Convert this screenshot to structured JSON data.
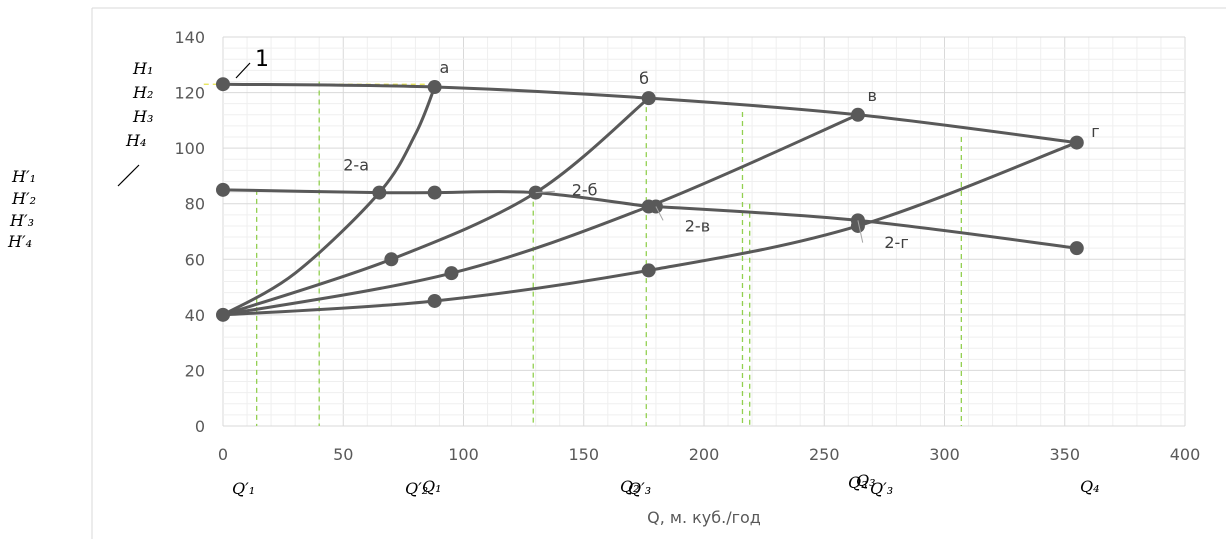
{
  "chart_data": {
    "type": "line",
    "xlabel": "Q, м. куб./год",
    "xlim": [
      0,
      400
    ],
    "ylim": [
      0,
      140
    ],
    "x_ticks": [
      0,
      50,
      100,
      150,
      200,
      250,
      300,
      350,
      400
    ],
    "y_ticks": [
      0,
      20,
      40,
      60,
      80,
      100,
      120,
      140
    ],
    "grid": true,
    "series": [
      {
        "points": [
          [
            0,
            123
          ],
          [
            88,
            122
          ],
          [
            177,
            118
          ],
          [
            264,
            112
          ],
          [
            355,
            102
          ]
        ],
        "color": "#595959"
      },
      {
        "points": [
          [
            0,
            85
          ],
          [
            65,
            84
          ],
          [
            88,
            84
          ],
          [
            130,
            84
          ],
          [
            177,
            79
          ],
          [
            180,
            79
          ],
          [
            264,
            74
          ],
          [
            355,
            64
          ]
        ],
        "color": "#595959"
      },
      {
        "points": [
          [
            0,
            40
          ],
          [
            30,
            55
          ],
          [
            65,
            84
          ],
          [
            80,
            105
          ],
          [
            88,
            122
          ]
        ],
        "color": "#595959"
      },
      {
        "points": [
          [
            0,
            40
          ],
          [
            70,
            60
          ],
          [
            130,
            84
          ],
          [
            177,
            118
          ]
        ],
        "color": "#595959"
      },
      {
        "points": [
          [
            0,
            40
          ],
          [
            95,
            55
          ],
          [
            177,
            79
          ],
          [
            264,
            112
          ]
        ],
        "color": "#595959"
      },
      {
        "points": [
          [
            0,
            40
          ],
          [
            88,
            45
          ],
          [
            177,
            56
          ],
          [
            264,
            72
          ],
          [
            355,
            102
          ]
        ],
        "color": "#595959"
      }
    ],
    "markers": [
      [
        0,
        123
      ],
      [
        88,
        122
      ],
      [
        177,
        118
      ],
      [
        264,
        112
      ],
      [
        355,
        102
      ],
      [
        0,
        85
      ],
      [
        65,
        84
      ],
      [
        88,
        84
      ],
      [
        130,
        84
      ],
      [
        177,
        79
      ],
      [
        180,
        79
      ],
      [
        264,
        74
      ],
      [
        355,
        64
      ],
      [
        0,
        40
      ],
      [
        70,
        60
      ],
      [
        95,
        55
      ],
      [
        88,
        45
      ],
      [
        177,
        56
      ],
      [
        264,
        72
      ]
    ],
    "dashed_vertical_x": [
      14,
      40,
      129,
      176,
      216,
      219,
      307
    ],
    "dashed_horizontal": {
      "y": 123,
      "x_from": -8,
      "x_to": 88
    },
    "point_labels": [
      {
        "text": "а",
        "x": 90,
        "y": 127
      },
      {
        "text": "б",
        "x": 173,
        "y": 123
      },
      {
        "text": "в",
        "x": 268,
        "y": 117
      },
      {
        "text": "г",
        "x": 361,
        "y": 104
      },
      {
        "text": "2-а",
        "x": 50,
        "y": 92
      },
      {
        "text": "2-б",
        "x": 145,
        "y": 83
      },
      {
        "text": "2-в",
        "x": 192,
        "y": 70
      },
      {
        "text": "2-г",
        "x": 275,
        "y": 64
      }
    ],
    "h_labels": [
      "H₁",
      "H₂",
      "H₃",
      "H₄"
    ],
    "h_prime_labels": [
      "H′₁",
      "H′₂",
      "H′₃",
      "H′₄"
    ],
    "q_labels": [
      "Q′₁",
      "Q′₂",
      "Q₁",
      "Q₂",
      "Q′₃",
      "Q₃",
      "Q₃",
      "Q′₃",
      "Q₄"
    ],
    "mark_label": "1",
    "dash_color": "#92d050",
    "line_color": "#595959",
    "grid_color": "#d9d9d9"
  }
}
